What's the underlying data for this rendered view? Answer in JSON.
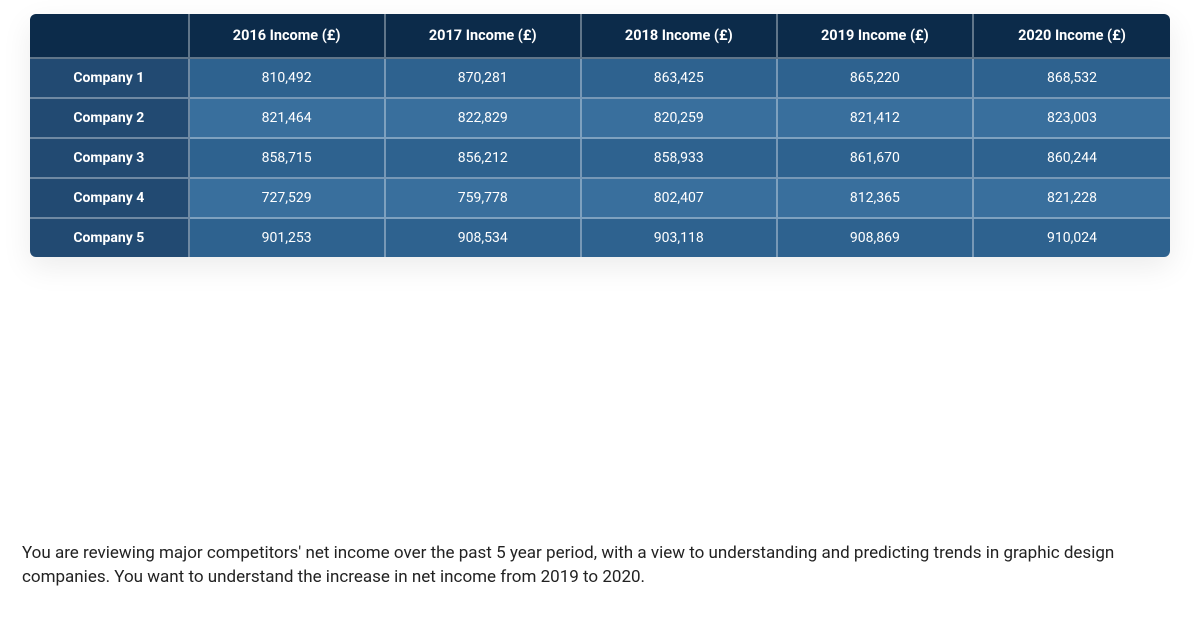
{
  "table": {
    "type": "table",
    "header_bg": "#0c2b4a",
    "row_label_bg": "#224a72",
    "row_bgs_alt": [
      "#2e628f",
      "#396f9d"
    ],
    "border_color": "rgba(255,255,255,0.35)",
    "text_color": "#ffffff",
    "font_size": 14,
    "header_font_size": 14.5,
    "corner_label": "",
    "columns": [
      "2016 Income (£)",
      "2017 Income (£)",
      "2018 Income (£)",
      "2019 Income (£)",
      "2020 Income (£)"
    ],
    "rows": [
      {
        "label": "Company 1",
        "values": [
          "810,492",
          "870,281",
          "863,425",
          "865,220",
          "868,532"
        ]
      },
      {
        "label": "Company 2",
        "values": [
          "821,464",
          "822,829",
          "820,259",
          "821,412",
          "823,003"
        ]
      },
      {
        "label": "Company 3",
        "values": [
          "858,715",
          "856,212",
          "858,933",
          "861,670",
          "860,244"
        ]
      },
      {
        "label": "Company 4",
        "values": [
          "727,529",
          "759,778",
          "802,407",
          "812,365",
          "821,228"
        ]
      },
      {
        "label": "Company 5",
        "values": [
          "901,253",
          "908,534",
          "903,118",
          "908,869",
          "910,024"
        ]
      }
    ],
    "col_widths_pct": [
      14,
      17.2,
      17.2,
      17.2,
      17.2,
      17.2
    ]
  },
  "caption": "You are reviewing major competitors' net income over the past 5 year period, with a view to understanding and predicting trends in graphic design companies. You want to understand the increase in net income from 2019 to 2020."
}
